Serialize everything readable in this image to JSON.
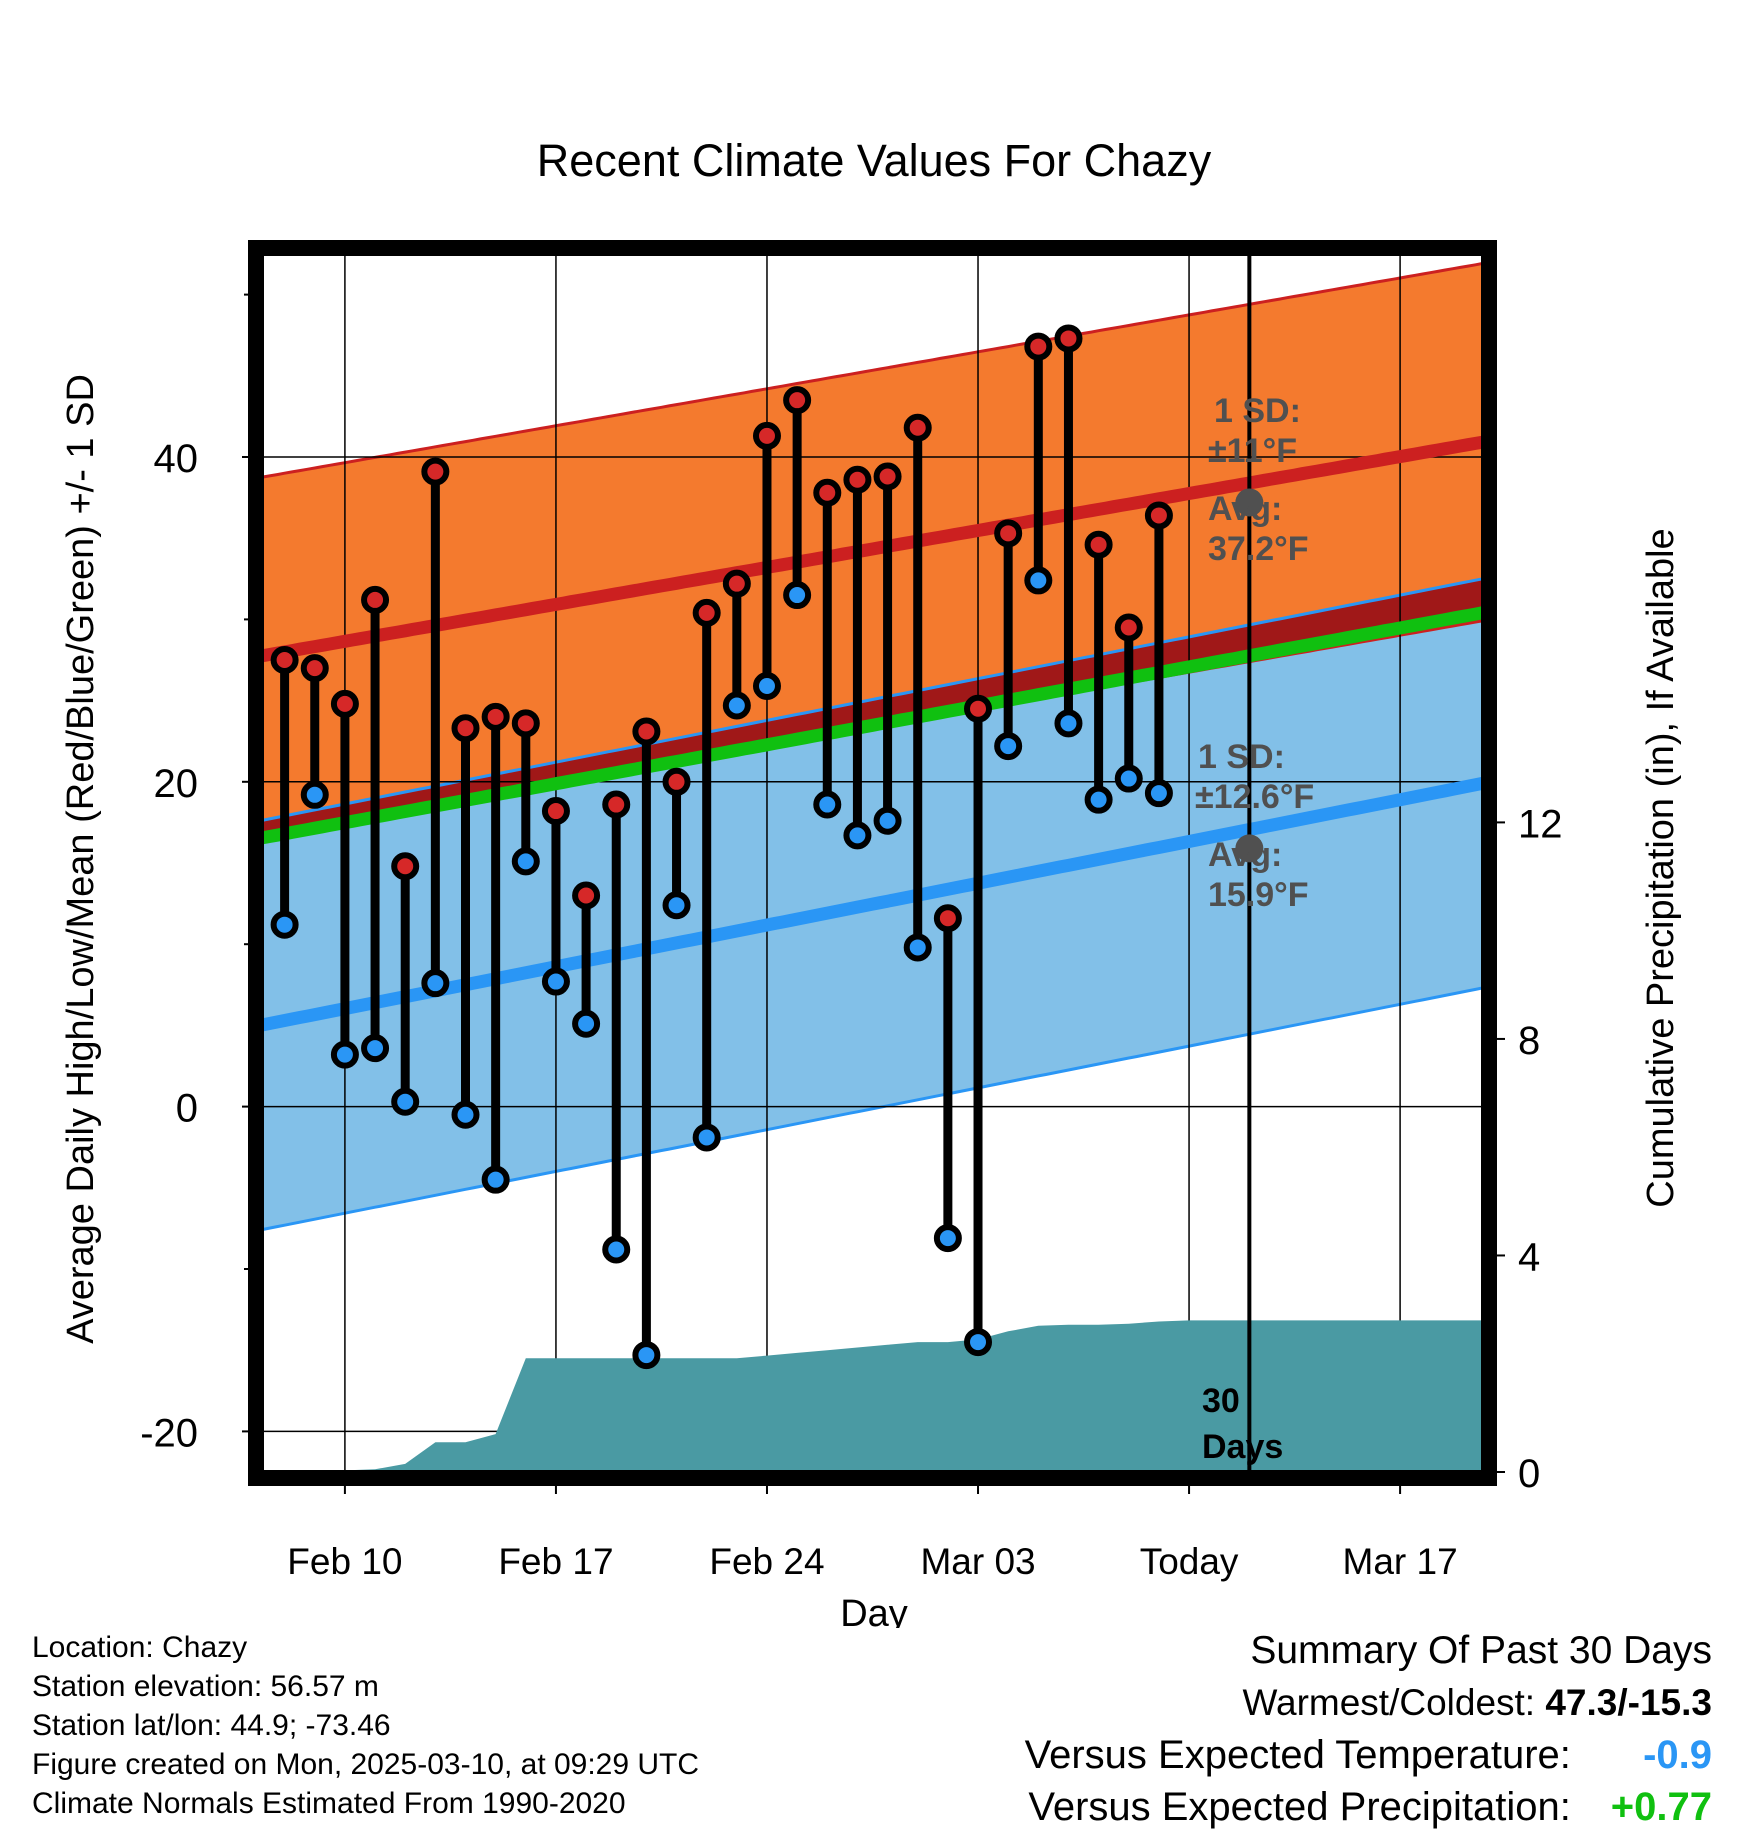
{
  "chart_data": {
    "type": "line",
    "title": "Recent Climate Values For Chazy",
    "xlabel": "Day",
    "ylabel": "Average Daily High/Low/Mean (Red/Blue/Green) +/- 1 SD",
    "y2label": "Cumulative Precipitation (in), If Available",
    "ylim": [
      -22.5,
      52.5
    ],
    "y2lim": [
      0,
      22.5
    ],
    "xlim": [
      -0.75,
      39.75
    ],
    "today_index": 32,
    "x_ticks": [
      {
        "day": 2,
        "label": "Feb 10"
      },
      {
        "day": 9,
        "label": "Feb 17"
      },
      {
        "day": 16,
        "label": "Feb 24"
      },
      {
        "day": 23,
        "label": "Mar 03"
      },
      {
        "day": 30,
        "label": "Today"
      },
      {
        "day": 37,
        "label": "Mar 17"
      }
    ],
    "y_ticks": [
      -20,
      0,
      20,
      40
    ],
    "y2_ticks": [
      0,
      4,
      8,
      12
    ],
    "normals": {
      "high_mean": {
        "day0": 28.0,
        "day40": 41.0
      },
      "high_sd": 11,
      "low_mean": {
        "day0": 5.3,
        "day40": 20.0
      },
      "low_sd": 12.6,
      "mean_mean": {
        "day0": 16.8,
        "day40": 30.5
      }
    },
    "observed": {
      "highs": [
        27.5,
        27.0,
        24.8,
        31.2,
        14.8,
        39.1,
        23.3,
        24.0,
        23.6,
        18.2,
        13.0,
        18.6,
        23.1,
        20.0,
        30.4,
        32.2,
        41.3,
        43.5,
        37.8,
        38.6,
        38.8,
        41.8,
        11.6,
        24.5,
        35.3,
        46.8,
        47.3,
        34.6,
        29.5,
        36.4
      ],
      "lows": [
        11.2,
        19.2,
        3.2,
        3.6,
        0.3,
        7.6,
        -0.5,
        -4.5,
        15.1,
        7.7,
        5.1,
        -8.8,
        -15.3,
        12.4,
        -1.9,
        24.7,
        25.9,
        31.5,
        18.6,
        16.7,
        17.6,
        9.8,
        -8.1,
        -14.5,
        22.2,
        32.4,
        23.6,
        18.9,
        20.2,
        19.3
      ]
    },
    "precipitation": {
      "days": [
        0,
        1,
        2,
        3,
        4,
        5,
        6,
        7,
        8,
        9,
        10,
        11,
        12,
        13,
        14,
        15,
        16,
        17,
        18,
        19,
        20,
        21,
        22,
        23,
        24,
        25,
        26,
        27,
        28,
        29,
        30,
        31,
        32,
        33,
        34,
        35,
        36,
        37,
        38,
        39,
        39.75
      ],
      "values": [
        0.02,
        0.02,
        0.03,
        0.05,
        0.15,
        0.55,
        0.55,
        0.7,
        2.1,
        2.1,
        2.1,
        2.1,
        2.1,
        2.1,
        2.1,
        2.1,
        2.15,
        2.2,
        2.25,
        2.3,
        2.35,
        2.4,
        2.4,
        2.45,
        2.6,
        2.7,
        2.72,
        2.72,
        2.74,
        2.78,
        2.8,
        2.8,
        2.8,
        2.8,
        2.8,
        2.8,
        2.8,
        2.8,
        2.8,
        2.8,
        2.8
      ]
    },
    "annotations": {
      "high_sd_label": "1 SD:",
      "high_sd_value": "±11°F",
      "high_avg_label": "Avg:",
      "high_avg_value": "37.2°F",
      "high_avg_point": 37.2,
      "low_sd_label": "1 SD:",
      "low_sd_value": "±12.6°F",
      "low_avg_label": "Avg:",
      "low_avg_value": "15.9°F",
      "low_avg_point": 15.9,
      "window_label_1": "30",
      "window_label_2": "Days"
    },
    "colors": {
      "high_band": "#f47a2e",
      "high_line": "#cc2020",
      "low_band": "#82c0e8",
      "low_line": "#2a96f5",
      "overlap_band": "#a01818",
      "mean_line": "#10c010",
      "precip": "#4a9aa3",
      "high_point": "#d62828",
      "low_point": "#2a96f5",
      "annotation": "#505050"
    }
  },
  "footer": {
    "location": "Location: Chazy",
    "elevation": "Station elevation: 56.57 m",
    "latlon": "Station lat/lon: 44.9; -73.46",
    "created": "Figure created on Mon, 2025-03-10, at 09:29 UTC",
    "normals": "Climate Normals Estimated From 1990-2020"
  },
  "summary": {
    "title": "Summary Of Past 30 Days",
    "warm_cold_label": "Warmest/Coldest:",
    "warm_cold_value": "47.3/-15.3",
    "temp_label": "Versus Expected Temperature:",
    "temp_value": "-0.9",
    "precip_label": "Versus Expected Precipitation:",
    "precip_value": "+0.77"
  }
}
